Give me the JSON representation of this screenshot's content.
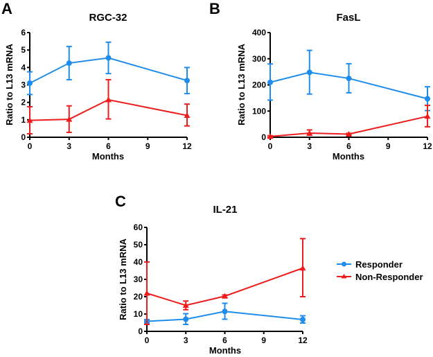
{
  "colors": {
    "responder": "#1e8ceb",
    "non_responder": "#ee1c1c",
    "axis": "#000000"
  },
  "legend": {
    "items": [
      {
        "label": "Responder",
        "series": "responder",
        "marker": "circle"
      },
      {
        "label": "Non-Responder",
        "series": "non_responder",
        "marker": "triangle"
      }
    ]
  },
  "chart_data": [
    {
      "panel": "A",
      "type": "line",
      "title": "RGC-32",
      "xlabel": "Months",
      "ylabel": "Ratio to L13 mRNA",
      "x": [
        0,
        3,
        6,
        12
      ],
      "xticks": [
        0,
        3,
        6,
        9,
        12
      ],
      "xlim": [
        0,
        12
      ],
      "ylim": [
        0,
        6
      ],
      "yticks": [
        0,
        1,
        2,
        3,
        4,
        5,
        6
      ],
      "grid": false,
      "series": [
        {
          "name": "Responder",
          "key": "responder",
          "marker": "circle",
          "values": [
            3.1,
            4.25,
            4.55,
            3.25
          ],
          "err_low": [
            2.45,
            3.3,
            3.65,
            2.5
          ],
          "err_high": [
            3.75,
            5.2,
            5.45,
            4.0
          ]
        },
        {
          "name": "Non-Responder",
          "key": "non_responder",
          "marker": "triangle",
          "values": [
            0.97,
            1.03,
            2.15,
            1.25
          ],
          "err_low": [
            0.2,
            0.28,
            1.05,
            0.65
          ],
          "err_high": [
            1.75,
            1.8,
            3.3,
            1.9
          ]
        }
      ]
    },
    {
      "panel": "B",
      "type": "line",
      "title": "FasL",
      "xlabel": "Months",
      "ylabel": "Ratio to L13 mRNA",
      "x": [
        0,
        3,
        6,
        12
      ],
      "xticks": [
        0,
        3,
        6,
        9,
        12
      ],
      "xlim": [
        0,
        12
      ],
      "ylim": [
        0,
        400
      ],
      "yticks": [
        0,
        100,
        200,
        300,
        400
      ],
      "grid": false,
      "series": [
        {
          "name": "Responder",
          "key": "responder",
          "marker": "circle",
          "values": [
            210,
            248,
            225,
            147
          ],
          "err_low": [
            142,
            165,
            170,
            102
          ],
          "err_high": [
            280,
            332,
            281,
            193
          ]
        },
        {
          "name": "Non-Responder",
          "key": "non_responder",
          "marker": "triangle",
          "values": [
            3,
            16,
            12,
            80
          ],
          "err_low": [
            0,
            8,
            10,
            40
          ],
          "err_high": [
            6,
            28,
            15,
            122
          ]
        }
      ]
    },
    {
      "panel": "C",
      "type": "line",
      "title": "IL-21",
      "xlabel": "Months",
      "ylabel": "Ratio to L13 mRNA",
      "x": [
        0,
        3,
        6,
        12
      ],
      "xticks": [
        0,
        3,
        6,
        9,
        12
      ],
      "xlim": [
        0,
        12
      ],
      "ylim": [
        0,
        60
      ],
      "yticks": [
        0,
        10,
        20,
        30,
        40,
        50,
        60
      ],
      "grid": false,
      "legend": "right",
      "series": [
        {
          "name": "Responder",
          "key": "responder",
          "marker": "circle",
          "values": [
            5.8,
            7.0,
            11.5,
            6.8
          ],
          "err_low": [
            4.8,
            4.0,
            7.0,
            4.8
          ],
          "err_high": [
            6.8,
            10.2,
            16.2,
            9.0
          ]
        },
        {
          "name": "Non-Responder",
          "key": "non_responder",
          "marker": "triangle",
          "values": [
            22,
            15,
            20.3,
            36.5
          ],
          "err_low": [
            4,
            12.5,
            19.5,
            20
          ],
          "err_high": [
            40,
            17.5,
            21,
            53.5
          ]
        }
      ]
    }
  ]
}
